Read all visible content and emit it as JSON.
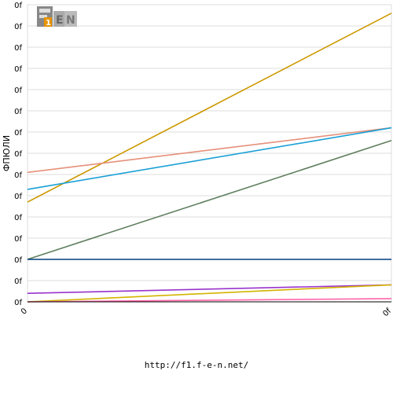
{
  "chart_data": {
    "type": "line",
    "ylabel": "ФПЮЛИ",
    "x_ticks": [
      "0",
      "0f"
    ],
    "y_ticks": [
      "0f",
      "0f",
      "0f",
      "0f",
      "0f",
      "0f",
      "0f",
      "0f",
      "0f",
      "0f",
      "0f",
      "0f",
      "0f",
      "0f",
      "0f"
    ],
    "xlim": [
      0,
      1
    ],
    "ylim": [
      0,
      14
    ],
    "grid": true,
    "series": [
      {
        "color": "#cc9900",
        "values": [
          4.7,
          13.6
        ]
      },
      {
        "color": "#e6907a",
        "values": [
          6.1,
          8.2
        ]
      },
      {
        "color": "#1aa0d6",
        "values": [
          5.3,
          8.2
        ]
      },
      {
        "color": "#5f7f5f",
        "values": [
          2.0,
          7.6
        ]
      },
      {
        "color": "#003f7f",
        "values": [
          2.0,
          2.0
        ]
      },
      {
        "color": "#9933cc",
        "values": [
          0.4,
          0.8
        ]
      },
      {
        "color": "#d4b300",
        "values": [
          0.0,
          0.8
        ]
      },
      {
        "color": "#ff66aa",
        "values": [
          0.0,
          0.15
        ]
      }
    ]
  },
  "watermark": {
    "logo": "F1 F-E-N"
  },
  "footer": {
    "url": "http://f1.f-e-n.net/"
  }
}
